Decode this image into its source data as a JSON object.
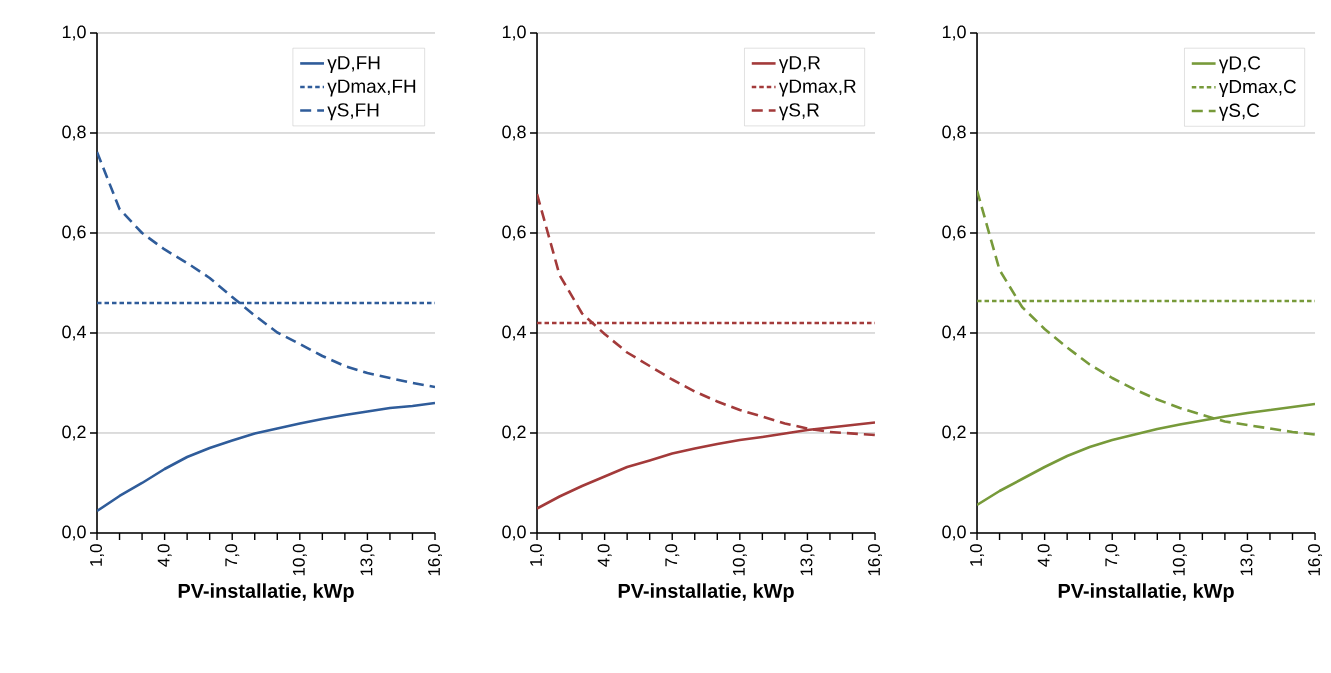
{
  "chart_data": [
    {
      "type": "line",
      "xlabel": "PV-installatie, kWp",
      "x": [
        1,
        2,
        3,
        4,
        5,
        6,
        7,
        8,
        9,
        10,
        11,
        12,
        13,
        14,
        15,
        16
      ],
      "xlim": [
        1,
        16
      ],
      "xticks": [
        {
          "value": 1,
          "label": "1,0"
        },
        {
          "value": 2,
          "label": null
        },
        {
          "value": 3,
          "label": null
        },
        {
          "value": 4,
          "label": "4,0"
        },
        {
          "value": 5,
          "label": null
        },
        {
          "value": 6,
          "label": null
        },
        {
          "value": 7,
          "label": "7,0"
        },
        {
          "value": 8,
          "label": null
        },
        {
          "value": 9,
          "label": null
        },
        {
          "value": 10,
          "label": "10,0"
        },
        {
          "value": 11,
          "label": null
        },
        {
          "value": 12,
          "label": null
        },
        {
          "value": 13,
          "label": "13,0"
        },
        {
          "value": 14,
          "label": null
        },
        {
          "value": 15,
          "label": null
        },
        {
          "value": 16,
          "label": "16,0"
        }
      ],
      "ylim": [
        0,
        1
      ],
      "yticks": [
        {
          "value": 0,
          "label": "0,0"
        },
        {
          "value": 0.2,
          "label": "0,2"
        },
        {
          "value": 0.4,
          "label": "0,4"
        },
        {
          "value": 0.6,
          "label": "0,6"
        },
        {
          "value": 0.8,
          "label": "0,8"
        },
        {
          "value": 1,
          "label": "1,0"
        }
      ],
      "grid": "y",
      "legend": "top right",
      "series": [
        {
          "name": "γD,FH",
          "color": "#2f5c9a",
          "line_style": "solid",
          "values": [
            0.044,
            0.074,
            0.1,
            0.128,
            0.152,
            0.17,
            0.185,
            0.199,
            0.209,
            0.219,
            0.228,
            0.236,
            0.243,
            0.25,
            0.254,
            0.26
          ]
        },
        {
          "name": "γDmax,FH",
          "color": "#2f5c9a",
          "line_style": "dotted",
          "values": [
            0.46,
            0.46,
            0.46,
            0.46,
            0.46,
            0.46,
            0.46,
            0.46,
            0.46,
            0.46,
            0.46,
            0.46,
            0.46,
            0.46,
            0.46,
            0.46
          ]
        },
        {
          "name": "γS,FH",
          "color": "#2f5c9a",
          "line_style": "dashed",
          "values": [
            0.762,
            0.648,
            0.6,
            0.567,
            0.54,
            0.51,
            0.472,
            0.435,
            0.401,
            0.378,
            0.354,
            0.334,
            0.32,
            0.31,
            0.3,
            0.292
          ]
        }
      ]
    },
    {
      "type": "line",
      "xlabel": "PV-installatie, kWp",
      "x": [
        1,
        2,
        3,
        4,
        5,
        6,
        7,
        8,
        9,
        10,
        11,
        12,
        13,
        14,
        15,
        16
      ],
      "xlim": [
        1,
        16
      ],
      "xticks": [
        {
          "value": 1,
          "label": "1,0"
        },
        {
          "value": 2,
          "label": null
        },
        {
          "value": 3,
          "label": null
        },
        {
          "value": 4,
          "label": "4,0"
        },
        {
          "value": 5,
          "label": null
        },
        {
          "value": 6,
          "label": null
        },
        {
          "value": 7,
          "label": "7,0"
        },
        {
          "value": 8,
          "label": null
        },
        {
          "value": 9,
          "label": null
        },
        {
          "value": 10,
          "label": "10,0"
        },
        {
          "value": 11,
          "label": null
        },
        {
          "value": 12,
          "label": null
        },
        {
          "value": 13,
          "label": "13,0"
        },
        {
          "value": 14,
          "label": null
        },
        {
          "value": 15,
          "label": null
        },
        {
          "value": 16,
          "label": "16,0"
        }
      ],
      "ylim": [
        0,
        1
      ],
      "yticks": [
        {
          "value": 0,
          "label": "0,0"
        },
        {
          "value": 0.2,
          "label": "0,2"
        },
        {
          "value": 0.4,
          "label": "0,4"
        },
        {
          "value": 0.6,
          "label": "0,6"
        },
        {
          "value": 0.8,
          "label": "0,8"
        },
        {
          "value": 1,
          "label": "1,0"
        }
      ],
      "grid": "y",
      "legend": "top right",
      "series": [
        {
          "name": "γD,R",
          "color": "#a33a3a",
          "line_style": "solid",
          "values": [
            0.049,
            0.073,
            0.094,
            0.113,
            0.132,
            0.145,
            0.159,
            0.169,
            0.178,
            0.186,
            0.192,
            0.199,
            0.206,
            0.211,
            0.216,
            0.221
          ]
        },
        {
          "name": "γDmax,R",
          "color": "#a33a3a",
          "line_style": "dotted",
          "values": [
            0.42,
            0.42,
            0.42,
            0.42,
            0.42,
            0.42,
            0.42,
            0.42,
            0.42,
            0.42,
            0.42,
            0.42,
            0.42,
            0.42,
            0.42,
            0.42
          ]
        },
        {
          "name": "γS,R",
          "color": "#a33a3a",
          "line_style": "dashed",
          "values": [
            0.678,
            0.516,
            0.439,
            0.398,
            0.361,
            0.334,
            0.307,
            0.283,
            0.263,
            0.246,
            0.233,
            0.219,
            0.209,
            0.202,
            0.199,
            0.196
          ]
        }
      ]
    },
    {
      "type": "line",
      "xlabel": "PV-installatie, kWp",
      "x": [
        1,
        2,
        3,
        4,
        5,
        6,
        7,
        8,
        9,
        10,
        11,
        12,
        13,
        14,
        15,
        16
      ],
      "xlim": [
        1,
        16
      ],
      "xticks": [
        {
          "value": 1,
          "label": "1,0"
        },
        {
          "value": 2,
          "label": null
        },
        {
          "value": 3,
          "label": null
        },
        {
          "value": 4,
          "label": "4,0"
        },
        {
          "value": 5,
          "label": null
        },
        {
          "value": 6,
          "label": null
        },
        {
          "value": 7,
          "label": "7,0"
        },
        {
          "value": 8,
          "label": null
        },
        {
          "value": 9,
          "label": null
        },
        {
          "value": 10,
          "label": "10,0"
        },
        {
          "value": 11,
          "label": null
        },
        {
          "value": 12,
          "label": null
        },
        {
          "value": 13,
          "label": "13,0"
        },
        {
          "value": 14,
          "label": null
        },
        {
          "value": 15,
          "label": null
        },
        {
          "value": 16,
          "label": "16,0"
        }
      ],
      "ylim": [
        0,
        1
      ],
      "yticks": [
        {
          "value": 0,
          "label": "0,0"
        },
        {
          "value": 0.2,
          "label": "0,2"
        },
        {
          "value": 0.4,
          "label": "0,4"
        },
        {
          "value": 0.6,
          "label": "0,6"
        },
        {
          "value": 0.8,
          "label": "0,8"
        },
        {
          "value": 1,
          "label": "1,0"
        }
      ],
      "grid": "y",
      "legend": "top right",
      "series": [
        {
          "name": "γD,C",
          "color": "#779a3a",
          "line_style": "solid",
          "values": [
            0.056,
            0.084,
            0.108,
            0.132,
            0.154,
            0.172,
            0.186,
            0.197,
            0.208,
            0.217,
            0.225,
            0.233,
            0.24,
            0.246,
            0.252,
            0.258
          ]
        },
        {
          "name": "γDmax,C",
          "color": "#779a3a",
          "line_style": "dotted",
          "values": [
            0.464,
            0.464,
            0.464,
            0.464,
            0.464,
            0.464,
            0.464,
            0.464,
            0.464,
            0.464,
            0.464,
            0.464,
            0.464,
            0.464,
            0.464,
            0.464
          ]
        },
        {
          "name": "γS,C",
          "color": "#779a3a",
          "line_style": "dashed",
          "values": [
            0.685,
            0.526,
            0.452,
            0.408,
            0.371,
            0.337,
            0.31,
            0.287,
            0.267,
            0.25,
            0.236,
            0.223,
            0.216,
            0.209,
            0.202,
            0.197
          ]
        }
      ]
    }
  ]
}
